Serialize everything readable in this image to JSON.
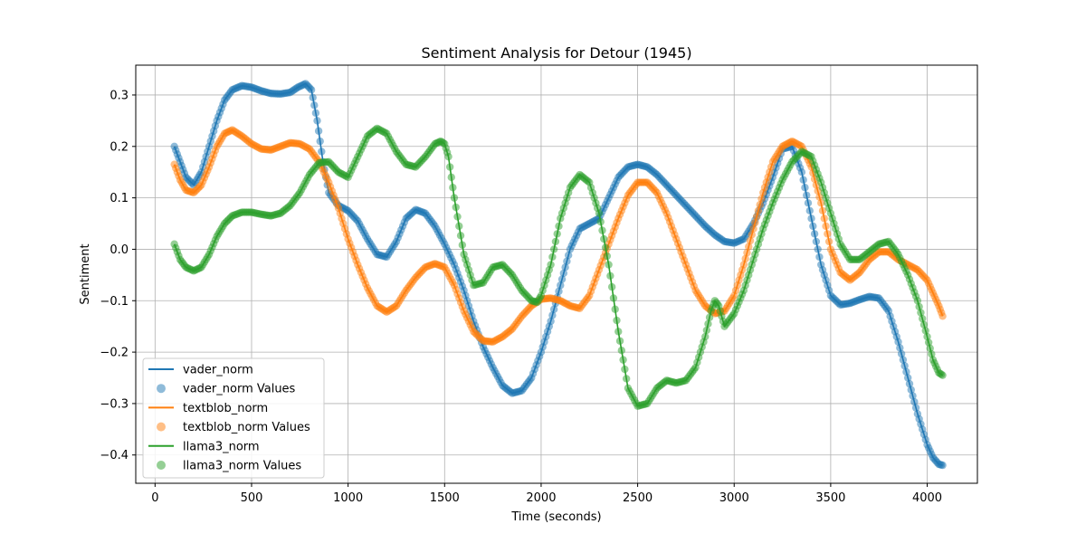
{
  "chart_data": {
    "type": "line",
    "title": "Sentiment Analysis for Detour (1945)",
    "xlabel": "Time (seconds)",
    "ylabel": "Sentiment",
    "xlim": [
      -100,
      4260
    ],
    "ylim": [
      -0.455,
      0.358
    ],
    "xticks": [
      0,
      500,
      1000,
      1500,
      2000,
      2500,
      3000,
      3500,
      4000
    ],
    "yticks": [
      -0.4,
      -0.3,
      -0.2,
      -0.1,
      0.0,
      0.1,
      0.2,
      0.3
    ],
    "xtick_labels": [
      "0",
      "500",
      "1000",
      "1500",
      "2000",
      "2500",
      "3000",
      "3500",
      "4000"
    ],
    "ytick_labels": [
      "−0.4",
      "−0.3",
      "−0.2",
      "−0.1",
      "0.0",
      "0.1",
      "0.2",
      "0.3"
    ],
    "grid": true,
    "legend_position": "lower-left",
    "legend": [
      "vader_norm",
      "vader_norm Values",
      "textblob_norm",
      "textblob_norm Values",
      "llama3_norm",
      "llama3_norm Values"
    ],
    "series": [
      {
        "name": "vader_norm",
        "color": "#1f77b4",
        "x": [
          100,
          130,
          160,
          200,
          240,
          280,
          320,
          360,
          400,
          450,
          500,
          550,
          600,
          650,
          700,
          740,
          780,
          810,
          840,
          870,
          900,
          950,
          1000,
          1050,
          1100,
          1150,
          1200,
          1250,
          1300,
          1350,
          1400,
          1450,
          1500,
          1550,
          1600,
          1650,
          1700,
          1750,
          1800,
          1850,
          1900,
          1950,
          2000,
          2050,
          2100,
          2150,
          2200,
          2250,
          2300,
          2350,
          2400,
          2450,
          2500,
          2550,
          2600,
          2650,
          2700,
          2750,
          2800,
          2850,
          2900,
          2950,
          3000,
          3050,
          3100,
          3150,
          3200,
          3250,
          3300,
          3350,
          3400,
          3450,
          3500,
          3550,
          3600,
          3650,
          3700,
          3750,
          3800,
          3850,
          3900,
          3950,
          4000,
          4030,
          4060,
          4080
        ],
        "y": [
          0.2,
          0.17,
          0.14,
          0.125,
          0.15,
          0.2,
          0.25,
          0.29,
          0.31,
          0.318,
          0.315,
          0.308,
          0.303,
          0.302,
          0.305,
          0.315,
          0.322,
          0.31,
          0.25,
          0.17,
          0.11,
          0.085,
          0.075,
          0.055,
          0.02,
          -0.01,
          -0.015,
          0.015,
          0.06,
          0.077,
          0.07,
          0.045,
          0.01,
          -0.03,
          -0.08,
          -0.14,
          -0.19,
          -0.23,
          -0.265,
          -0.28,
          -0.275,
          -0.25,
          -0.2,
          -0.14,
          -0.07,
          0.0,
          0.04,
          0.05,
          0.06,
          0.1,
          0.14,
          0.16,
          0.165,
          0.16,
          0.145,
          0.125,
          0.105,
          0.085,
          0.065,
          0.045,
          0.028,
          0.015,
          0.012,
          0.02,
          0.05,
          0.09,
          0.14,
          0.195,
          0.2,
          0.15,
          0.06,
          -0.03,
          -0.09,
          -0.108,
          -0.105,
          -0.098,
          -0.092,
          -0.095,
          -0.12,
          -0.18,
          -0.25,
          -0.32,
          -0.38,
          -0.405,
          -0.418,
          -0.42
        ]
      },
      {
        "name": "textblob_norm",
        "color": "#ff7f0e",
        "x": [
          100,
          130,
          160,
          200,
          240,
          280,
          320,
          360,
          400,
          450,
          500,
          550,
          600,
          650,
          700,
          750,
          800,
          850,
          900,
          950,
          1000,
          1050,
          1100,
          1150,
          1200,
          1250,
          1300,
          1350,
          1400,
          1450,
          1500,
          1550,
          1600,
          1650,
          1700,
          1750,
          1800,
          1850,
          1900,
          1950,
          2000,
          2050,
          2100,
          2150,
          2200,
          2250,
          2300,
          2350,
          2400,
          2450,
          2500,
          2550,
          2600,
          2650,
          2700,
          2750,
          2800,
          2850,
          2900,
          2950,
          3000,
          3050,
          3100,
          3150,
          3200,
          3250,
          3300,
          3350,
          3400,
          3450,
          3500,
          3550,
          3600,
          3650,
          3700,
          3750,
          3800,
          3850,
          3900,
          3950,
          4000,
          4030,
          4060,
          4080
        ],
        "y": [
          0.165,
          0.135,
          0.115,
          0.11,
          0.125,
          0.16,
          0.2,
          0.225,
          0.232,
          0.22,
          0.205,
          0.195,
          0.193,
          0.2,
          0.207,
          0.205,
          0.195,
          0.17,
          0.13,
          0.08,
          0.02,
          -0.03,
          -0.075,
          -0.11,
          -0.122,
          -0.11,
          -0.08,
          -0.055,
          -0.035,
          -0.028,
          -0.035,
          -0.07,
          -0.12,
          -0.16,
          -0.178,
          -0.18,
          -0.17,
          -0.155,
          -0.13,
          -0.11,
          -0.097,
          -0.095,
          -0.1,
          -0.11,
          -0.115,
          -0.09,
          -0.04,
          0.01,
          0.06,
          0.105,
          0.13,
          0.13,
          0.11,
          0.07,
          0.02,
          -0.03,
          -0.08,
          -0.11,
          -0.125,
          -0.12,
          -0.09,
          -0.03,
          0.04,
          0.11,
          0.17,
          0.2,
          0.21,
          0.2,
          0.16,
          0.09,
          0.0,
          -0.045,
          -0.06,
          -0.045,
          -0.02,
          -0.005,
          -0.005,
          -0.02,
          -0.03,
          -0.04,
          -0.06,
          -0.085,
          -0.11,
          -0.13
        ]
      },
      {
        "name": "llama3_norm",
        "color": "#2ca02c",
        "x": [
          100,
          130,
          160,
          200,
          240,
          280,
          320,
          360,
          400,
          450,
          500,
          550,
          600,
          650,
          700,
          750,
          800,
          850,
          900,
          950,
          1000,
          1050,
          1100,
          1150,
          1200,
          1250,
          1300,
          1350,
          1400,
          1450,
          1480,
          1500,
          1520,
          1550,
          1600,
          1650,
          1700,
          1750,
          1800,
          1850,
          1900,
          1950,
          1980,
          2000,
          2050,
          2100,
          2150,
          2200,
          2250,
          2300,
          2350,
          2400,
          2450,
          2500,
          2550,
          2600,
          2650,
          2700,
          2750,
          2800,
          2850,
          2880,
          2900,
          2920,
          2950,
          3000,
          3050,
          3100,
          3150,
          3200,
          3250,
          3300,
          3350,
          3400,
          3450,
          3500,
          3550,
          3600,
          3650,
          3700,
          3750,
          3800,
          3850,
          3900,
          3950,
          4000,
          4030,
          4060,
          4080
        ],
        "y": [
          0.01,
          -0.02,
          -0.035,
          -0.042,
          -0.035,
          -0.01,
          0.025,
          0.05,
          0.065,
          0.072,
          0.072,
          0.068,
          0.065,
          0.07,
          0.085,
          0.11,
          0.145,
          0.168,
          0.17,
          0.15,
          0.14,
          0.18,
          0.22,
          0.235,
          0.225,
          0.19,
          0.165,
          0.16,
          0.18,
          0.205,
          0.21,
          0.205,
          0.18,
          0.1,
          -0.01,
          -0.07,
          -0.065,
          -0.035,
          -0.03,
          -0.05,
          -0.08,
          -0.1,
          -0.103,
          -0.09,
          -0.03,
          0.06,
          0.12,
          0.145,
          0.13,
          0.07,
          -0.03,
          -0.16,
          -0.27,
          -0.305,
          -0.3,
          -0.27,
          -0.255,
          -0.26,
          -0.255,
          -0.23,
          -0.17,
          -0.12,
          -0.1,
          -0.11,
          -0.15,
          -0.125,
          -0.08,
          -0.02,
          0.04,
          0.09,
          0.135,
          0.17,
          0.19,
          0.18,
          0.13,
          0.07,
          0.01,
          -0.02,
          -0.02,
          -0.005,
          0.01,
          0.015,
          -0.01,
          -0.05,
          -0.1,
          -0.17,
          -0.215,
          -0.24,
          -0.245
        ]
      }
    ]
  }
}
